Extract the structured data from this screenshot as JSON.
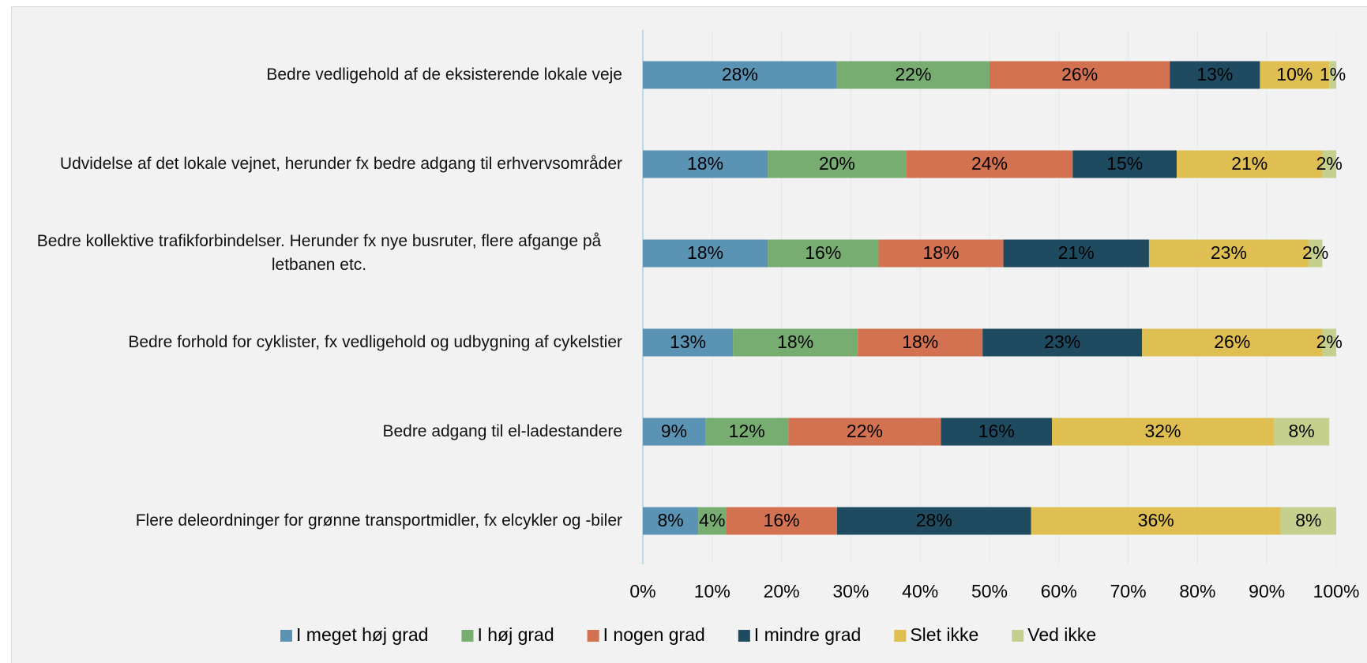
{
  "chart_data": {
    "type": "stacked_bar_horizontal",
    "categories": [
      "Bedre vedligehold af de eksisterende lokale veje",
      "Udvidelse af det lokale vejnet, herunder fx bedre adgang til erhvervsområder",
      "Bedre kollektive trafikforbindelser. Herunder fx nye busruter, flere afgange på letbanen etc.",
      "Bedre forhold for cyklister, fx vedligehold og udbygning af cykelstier",
      "Bedre adgang til el-ladestandere",
      "Flere deleordninger for grønne transportmidler, fx elcykler og -biler"
    ],
    "series": [
      {
        "name": "I meget høj grad",
        "color": "#5b93b5",
        "values": [
          28,
          18,
          18,
          13,
          9,
          8
        ],
        "value_labels": [
          "28%",
          "18%",
          "18%",
          "13%",
          "9%",
          "8%"
        ]
      },
      {
        "name": "I høj grad",
        "color": "#78ad72",
        "values": [
          22,
          20,
          16,
          18,
          12,
          4
        ],
        "value_labels": [
          "22%",
          "20%",
          "16%",
          "18%",
          "12%",
          "4%"
        ]
      },
      {
        "name": "I nogen grad",
        "color": "#d37250",
        "values": [
          26,
          24,
          18,
          18,
          22,
          16
        ],
        "value_labels": [
          "26%",
          "24%",
          "18%",
          "18%",
          "22%",
          "16%"
        ]
      },
      {
        "name": "I mindre grad",
        "color": "#1f4b60",
        "values": [
          13,
          15,
          21,
          23,
          16,
          28
        ],
        "value_labels": [
          "13%",
          "15%",
          "21%",
          "23%",
          "16%",
          "28%"
        ]
      },
      {
        "name": "Slet ikke",
        "color": "#dfbe52",
        "values": [
          10,
          21,
          23,
          26,
          32,
          36
        ],
        "value_labels": [
          "10%",
          "21%",
          "23%",
          "26%",
          "32%",
          "36%"
        ]
      },
      {
        "name": "Ved ikke",
        "color": "#c5d08f",
        "values": [
          1,
          2,
          2,
          2,
          8,
          8
        ],
        "value_labels": [
          "1%",
          "2%",
          "2%",
          "2%",
          "8%",
          "8%"
        ]
      }
    ],
    "xlim": [
      0,
      100
    ],
    "xticks": [
      {
        "value": 0,
        "label": "0%"
      },
      {
        "value": 10,
        "label": "10%"
      },
      {
        "value": 20,
        "label": "20%"
      },
      {
        "value": 30,
        "label": "30%"
      },
      {
        "value": 40,
        "label": "40%"
      },
      {
        "value": 50,
        "label": "50%"
      },
      {
        "value": 60,
        "label": "60%"
      },
      {
        "value": 70,
        "label": "70%"
      },
      {
        "value": 80,
        "label": "80%"
      },
      {
        "value": 90,
        "label": "90%"
      },
      {
        "value": 100,
        "label": "100%"
      }
    ],
    "grid": true,
    "legend": "bottom"
  }
}
